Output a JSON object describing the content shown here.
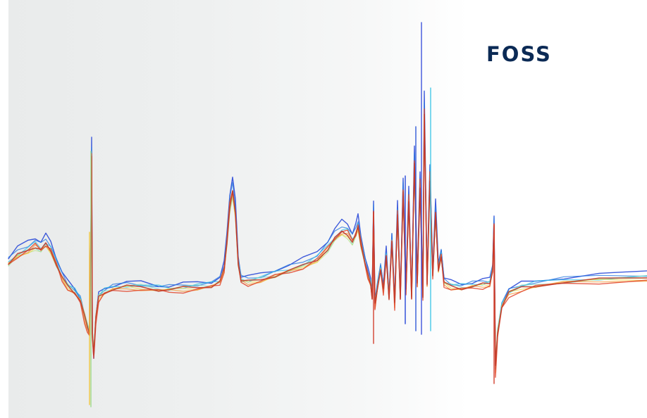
{
  "brand": {
    "logo_text": "FOSS",
    "logo_color": "#0b2a55"
  },
  "background": {
    "gradient_colors": [
      "#e9ebeb",
      "#f6f7f7",
      "#ffffff"
    ]
  },
  "spectra": {
    "description_colors": [
      "#1f3fd6",
      "#2a7be0",
      "#2fbfe6",
      "#6fd9c0",
      "#b8e07a",
      "#f0d64a",
      "#f39a3a",
      "#e2452c",
      "#c0392b"
    ]
  }
}
